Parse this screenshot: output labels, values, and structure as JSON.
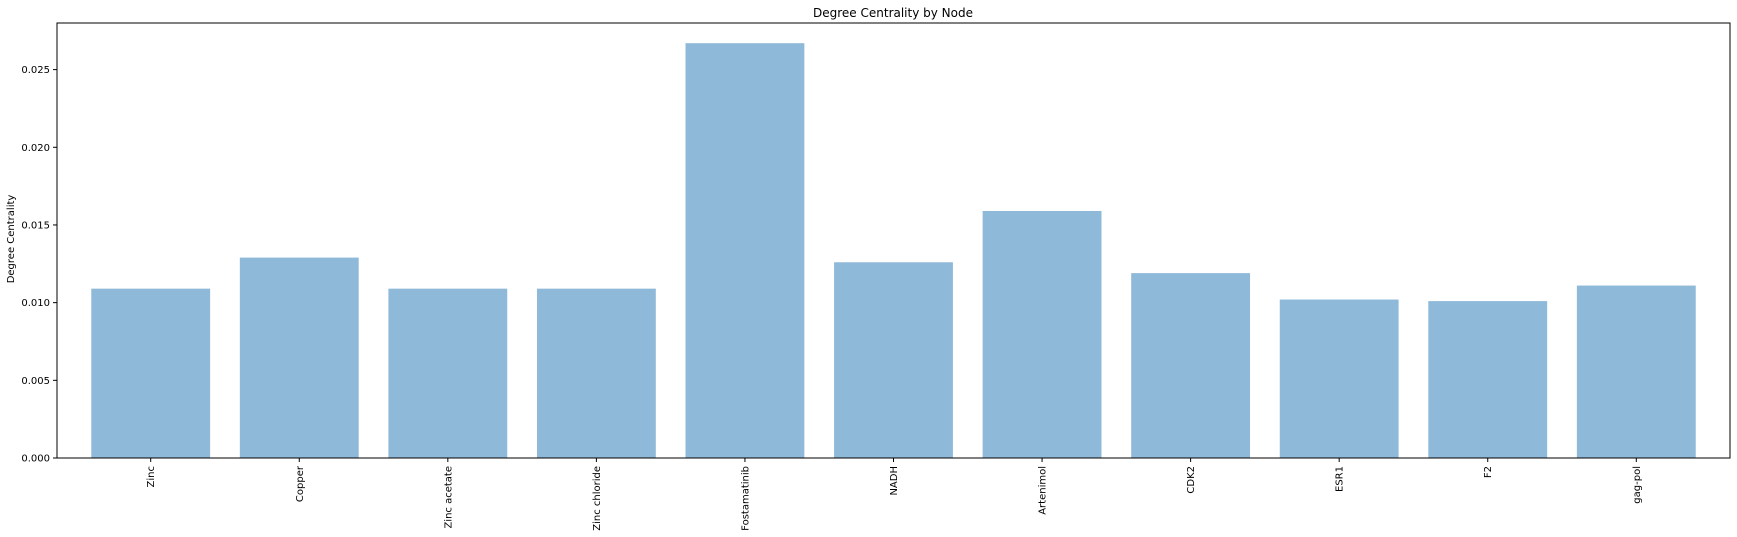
{
  "chart_data": {
    "type": "bar",
    "title": "Degree Centrality by Node",
    "xlabel": "",
    "ylabel": "Degree Centrality",
    "categories": [
      "Zinc",
      "Copper",
      "Zinc acetate",
      "Zinc chloride",
      "Fostamatinib",
      "NADH",
      "Artenimol",
      "CDK2",
      "ESR1",
      "F2",
      "gag-pol"
    ],
    "values": [
      0.0109,
      0.0129,
      0.0109,
      0.0109,
      0.0267,
      0.0126,
      0.0159,
      0.0119,
      0.0102,
      0.0101,
      0.0111
    ],
    "ylim": [
      0,
      0.028
    ],
    "yticks": [
      "0.000",
      "0.005",
      "0.010",
      "0.015",
      "0.020",
      "0.025"
    ],
    "ytick_values": [
      0,
      0.005,
      0.01,
      0.015,
      0.02,
      0.025
    ],
    "grid": false,
    "legend": "none",
    "bar_color": "#8fb9d9"
  }
}
